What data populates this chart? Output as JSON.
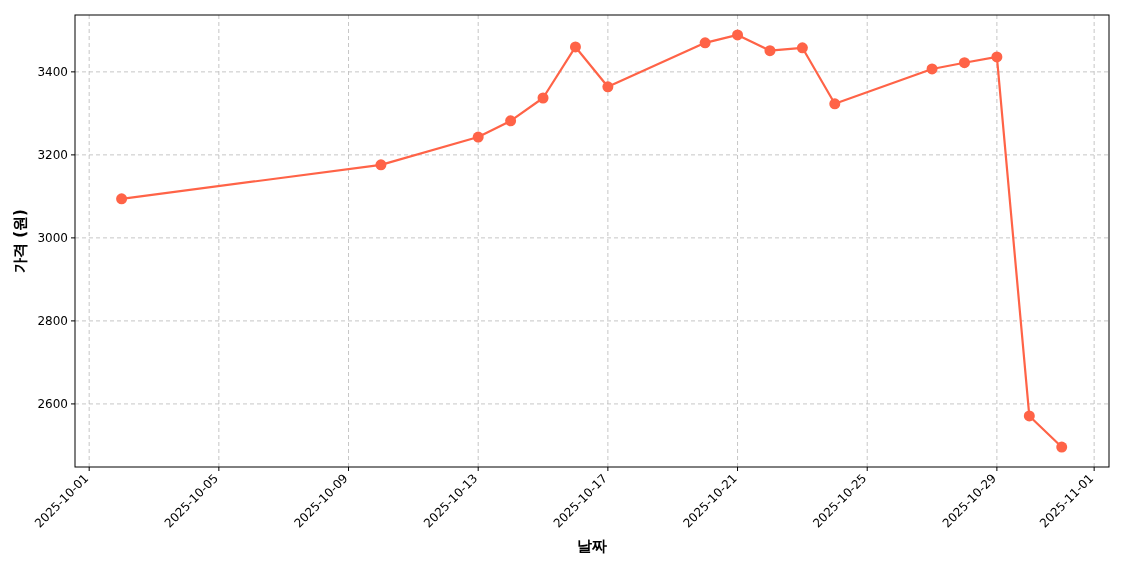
{
  "chart_data": {
    "type": "line",
    "xlabel": "날짜",
    "ylabel": "가격 (원)",
    "x": [
      "2025-10-02",
      "2025-10-10",
      "2025-10-13",
      "2025-10-14",
      "2025-10-15",
      "2025-10-16",
      "2025-10-17",
      "2025-10-20",
      "2025-10-21",
      "2025-10-22",
      "2025-10-23",
      "2025-10-24",
      "2025-10-27",
      "2025-10-28",
      "2025-10-29",
      "2025-10-30",
      "2025-10-31"
    ],
    "series": [
      {
        "color": "#ff6347",
        "values": [
          3094,
          3176,
          3243,
          3282,
          3337,
          3460,
          3364,
          3470,
          3489,
          3451,
          3458,
          3323,
          3407,
          3422,
          3436,
          2571,
          2496
        ]
      }
    ],
    "xlim": [
      "2025-09-30T13:30",
      "2025-11-01T11:00"
    ],
    "xticks": [
      "2025-10-01",
      "2025-10-05",
      "2025-10-09",
      "2025-10-13",
      "2025-10-17",
      "2025-10-21",
      "2025-10-25",
      "2025-10-29",
      "2025-11-01"
    ],
    "ylim": [
      2448,
      3537
    ],
    "yticks": [
      2600,
      2800,
      3000,
      3200,
      3400
    ],
    "grid": true,
    "marker": "circle",
    "line_style": "solid"
  }
}
